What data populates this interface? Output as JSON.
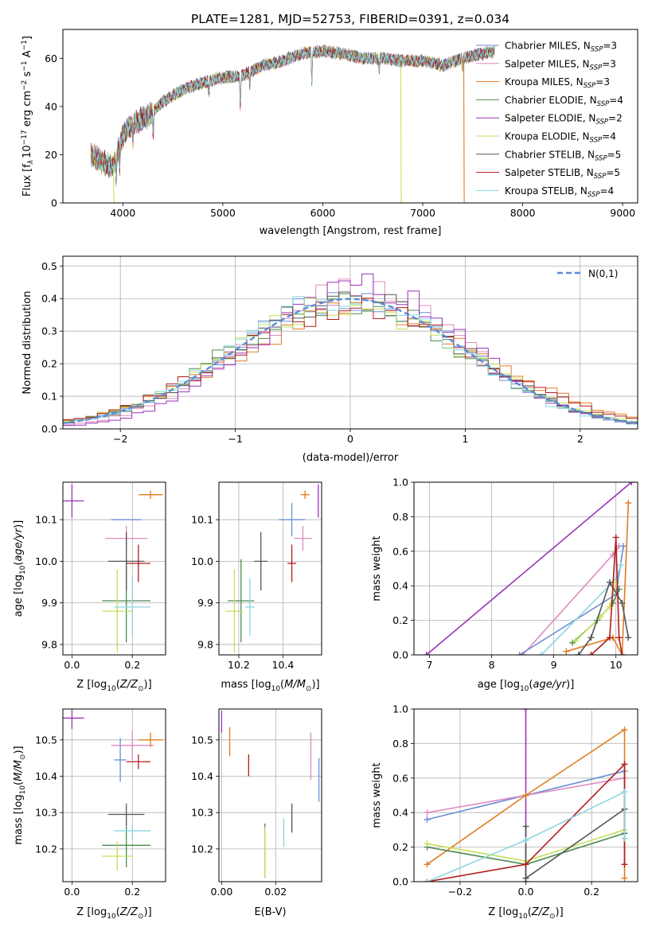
{
  "title": "PLATE=1281, MJD=52753, FIBERID=0391, z=0.034",
  "series": [
    {
      "name": "Chabrier MILES, N$_{SSP}$=3",
      "name_main": "Chabrier MILES, N",
      "name_sub": "SSP",
      "name_tail": "=3",
      "color": "#6a8ed6"
    },
    {
      "name": "Salpeter MILES, N$_{SSP}$=3",
      "name_main": "Salpeter MILES, N",
      "name_sub": "SSP",
      "name_tail": "=3",
      "color": "#e08abf"
    },
    {
      "name": "Kroupa MILES, N$_{SSP}$=3",
      "name_main": "Kroupa MILES, N",
      "name_sub": "SSP",
      "name_tail": "=3",
      "color": "#e07c22"
    },
    {
      "name": "Chabrier ELODIE, N$_{SSP}$=4",
      "name_main": "Chabrier ELODIE, N",
      "name_sub": "SSP",
      "name_tail": "=4",
      "color": "#4d8b4f"
    },
    {
      "name": "Salpeter ELODIE, N$_{SSP}$=2",
      "name_main": "Salpeter ELODIE, N",
      "name_sub": "SSP",
      "name_tail": "=2",
      "color": "#9a32b8"
    },
    {
      "name": "Kroupa ELODIE, N$_{SSP}$=4",
      "name_main": "Kroupa ELODIE, N",
      "name_sub": "SSP",
      "name_tail": "=4",
      "color": "#c6e05c"
    },
    {
      "name": "Chabrier STELIB, N$_{SSP}$=5",
      "name_main": "Chabrier STELIB, N",
      "name_sub": "SSP",
      "name_tail": "=5",
      "color": "#555555"
    },
    {
      "name": "Salpeter STELIB, N$_{SSP}$=5",
      "name_main": "Salpeter STELIB, N",
      "name_sub": "SSP",
      "name_tail": "=5",
      "color": "#b01c1c"
    },
    {
      "name": "Kroupa STELIB, N$_{SSP}$=4",
      "name_main": "Kroupa STELIB, N",
      "name_sub": "SSP",
      "name_tail": "=4",
      "color": "#8ad6e0"
    }
  ],
  "chart_data": [
    {
      "id": "spectrum",
      "type": "line",
      "title": "PLATE=1281, MJD=52753, FIBERID=0391, z=0.034",
      "xlabel": "wavelength [Angstrom, rest frame]",
      "ylabel": "Flux [f_λ 10^-17 erg cm^-2 s^-1 A^-1]",
      "ylabel_parts": {
        "a": "Flux [f",
        "a_sub": "λ",
        "b": "10",
        "b_sup": "−17",
        "c": " erg cm",
        "c_sup": "−2",
        "d": " s",
        "d_sup": "−1",
        "e": " A",
        "e_sup": "−1",
        "f": "]"
      },
      "xlim": [
        3400,
        9150
      ],
      "ylim": [
        0,
        72
      ],
      "xticks": [
        4000,
        5000,
        6000,
        7000,
        8000,
        9000
      ],
      "yticks": [
        0,
        20,
        40,
        60
      ],
      "grid": false,
      "legend_placement": "right",
      "x_range_data": [
        3680,
        7720
      ],
      "continuum_knots": [
        [
          3680,
          20
        ],
        [
          3800,
          17
        ],
        [
          3900,
          15
        ],
        [
          3950,
          22
        ],
        [
          4000,
          28
        ],
        [
          4100,
          33
        ],
        [
          4250,
          36
        ],
        [
          4400,
          42
        ],
        [
          4600,
          47
        ],
        [
          4800,
          50
        ],
        [
          5000,
          52
        ],
        [
          5200,
          53
        ],
        [
          5400,
          57
        ],
        [
          5600,
          59
        ],
        [
          5800,
          62
        ],
        [
          6000,
          63
        ],
        [
          6200,
          62
        ],
        [
          6400,
          60
        ],
        [
          6600,
          60
        ],
        [
          6800,
          59
        ],
        [
          7000,
          59
        ],
        [
          7200,
          57
        ],
        [
          7400,
          60
        ],
        [
          7600,
          62
        ],
        [
          7720,
          63
        ]
      ],
      "absorption_lines": [
        [
          3933,
          8
        ],
        [
          3968,
          9
        ],
        [
          4101,
          6
        ],
        [
          4304,
          10
        ],
        [
          4861,
          5
        ],
        [
          5175,
          13
        ],
        [
          5270,
          5
        ],
        [
          5890,
          12
        ],
        [
          6563,
          5
        ],
        [
          7400,
          4
        ]
      ],
      "dropouts": [
        {
          "series": 5,
          "x": 3905,
          "y_from": 15,
          "y_to": 0
        },
        {
          "series": 5,
          "x": 6780,
          "y_from": 57,
          "y_to": 0
        },
        {
          "series": 2,
          "x": 7410,
          "y_from": 60,
          "y_to": 0
        }
      ]
    },
    {
      "id": "residual_hist",
      "type": "line",
      "xlabel": "(data-model)/error",
      "ylabel": "Normed distribution",
      "xlim": [
        -2.5,
        2.5
      ],
      "ylim": [
        0,
        0.53
      ],
      "xticks": [
        -2,
        -1,
        0,
        1,
        2
      ],
      "yticks": [
        0.0,
        0.1,
        0.2,
        0.3,
        0.4,
        0.5
      ],
      "grid": true,
      "bin_width": 0.1,
      "legend_placement": "top-right",
      "reference_label": "N(0,1)",
      "reference_color": "#5b8bd8",
      "base_sigma": 1.05,
      "series_sigma": [
        1.0,
        0.95,
        1.1,
        1.02,
        0.92,
        1.05,
        1.0,
        1.08,
        0.98
      ],
      "series_mu": [
        0.0,
        0.05,
        0.08,
        -0.05,
        0.1,
        -0.02,
        0.0,
        0.03,
        -0.04
      ]
    },
    {
      "id": "age_vs_Z",
      "type": "scatter",
      "xlabel": "Z [log10(Z/Z_sun)]",
      "ylabel": "age [log10(age/yr)]",
      "xlim": [
        -0.03,
        0.31
      ],
      "ylim": [
        9.775,
        10.19
      ],
      "xticks": [
        0.0,
        0.2
      ],
      "yticks": [
        9.8,
        9.9,
        10.0,
        10.1
      ],
      "grid": true,
      "points": [
        {
          "s": 0,
          "x": 0.18,
          "y": 10.1,
          "xerr": 0.05,
          "yerr": 0.0
        },
        {
          "s": 1,
          "x": 0.18,
          "y": 10.055,
          "xerr": 0.07,
          "yerr": 0.03
        },
        {
          "s": 2,
          "x": 0.26,
          "y": 10.16,
          "xerr": 0.04,
          "yerr": 0.01
        },
        {
          "s": 3,
          "x": 0.18,
          "y": 9.905,
          "xerr": 0.08,
          "yerr": 0.1
        },
        {
          "s": 4,
          "x": 0.0,
          "y": 10.145,
          "xerr": 0.04,
          "yerr": 0.04
        },
        {
          "s": 5,
          "x": 0.15,
          "y": 9.88,
          "xerr": 0.05,
          "yerr": 0.1
        },
        {
          "s": 6,
          "x": 0.18,
          "y": 10.0,
          "xerr": 0.06,
          "yerr": 0.07
        },
        {
          "s": 7,
          "x": 0.22,
          "y": 9.995,
          "xerr": 0.04,
          "yerr": 0.045
        },
        {
          "s": 8,
          "x": 0.2,
          "y": 9.89,
          "xerr": 0.06,
          "yerr": 0.07
        }
      ]
    },
    {
      "id": "age_vs_mass",
      "type": "scatter",
      "xlabel": "mass [log10(M/M_sun)]",
      "ylabel": "",
      "xlim": [
        10.11,
        10.575
      ],
      "ylim": [
        9.775,
        10.19
      ],
      "xticks": [
        10.2,
        10.4
      ],
      "yticks": [
        9.8,
        9.9,
        10.0,
        10.1
      ],
      "grid": true,
      "points": [
        {
          "s": 0,
          "x": 10.44,
          "y": 10.1,
          "xerr": 0.06,
          "yerr": 0.04
        },
        {
          "s": 1,
          "x": 10.49,
          "y": 10.055,
          "xerr": 0.04,
          "yerr": 0.03
        },
        {
          "s": 2,
          "x": 10.5,
          "y": 10.16,
          "xerr": 0.02,
          "yerr": 0.01
        },
        {
          "s": 3,
          "x": 10.21,
          "y": 9.905,
          "xerr": 0.06,
          "yerr": 0.1
        },
        {
          "s": 4,
          "x": 10.56,
          "y": 10.145,
          "xerr": 0.0,
          "yerr": 0.04
        },
        {
          "s": 5,
          "x": 10.18,
          "y": 9.88,
          "xerr": 0.04,
          "yerr": 0.1
        },
        {
          "s": 6,
          "x": 10.3,
          "y": 10.0,
          "xerr": 0.03,
          "yerr": 0.07
        },
        {
          "s": 7,
          "x": 10.44,
          "y": 9.995,
          "xerr": 0.02,
          "yerr": 0.045
        },
        {
          "s": 8,
          "x": 10.25,
          "y": 9.89,
          "xerr": 0.02,
          "yerr": 0.07
        }
      ]
    },
    {
      "id": "massweight_vs_age",
      "type": "line",
      "xlabel": "age [log10(age/yr)]",
      "ylabel": "mass weight",
      "xlim": [
        6.75,
        10.35
      ],
      "ylim": [
        0,
        1
      ],
      "xticks": [
        7,
        8,
        9,
        10
      ],
      "yticks": [
        0.0,
        0.2,
        0.4,
        0.6,
        0.8,
        1.0
      ],
      "grid": true,
      "lines": [
        {
          "s": 4,
          "pts": [
            [
              6.95,
              0.0
            ],
            [
              10.25,
              1.0
            ]
          ]
        },
        {
          "s": 1,
          "pts": [
            [
              8.5,
              0.0
            ],
            [
              9.95,
              0.58
            ],
            [
              10.05,
              0.63
            ]
          ]
        },
        {
          "s": 0,
          "pts": [
            [
              8.45,
              0.0
            ],
            [
              10.0,
              0.35
            ],
            [
              10.12,
              0.63
            ]
          ]
        },
        {
          "s": 8,
          "pts": [
            [
              8.8,
              0.0
            ],
            [
              10.0,
              0.44
            ],
            [
              10.08,
              0.52
            ]
          ]
        },
        {
          "s": 2,
          "pts": [
            [
              9.2,
              0.02
            ],
            [
              9.95,
              0.1
            ],
            [
              10.1,
              0.0
            ],
            [
              10.2,
              0.88
            ]
          ]
        },
        {
          "s": 3,
          "pts": [
            [
              9.3,
              0.07
            ],
            [
              9.7,
              0.2
            ],
            [
              9.95,
              0.3
            ],
            [
              10.05,
              0.38
            ]
          ]
        },
        {
          "s": 5,
          "pts": [
            [
              9.35,
              0.08
            ],
            [
              9.75,
              0.22
            ],
            [
              9.9,
              0.28
            ],
            [
              10.0,
              0.42
            ]
          ]
        },
        {
          "s": 6,
          "pts": [
            [
              9.4,
              0.0
            ],
            [
              9.6,
              0.1
            ],
            [
              9.9,
              0.42
            ],
            [
              10.1,
              0.3
            ],
            [
              10.2,
              0.1
            ]
          ]
        },
        {
          "s": 7,
          "pts": [
            [
              9.6,
              0.0
            ],
            [
              9.9,
              0.1
            ],
            [
              10.0,
              0.68
            ],
            [
              10.05,
              0.1
            ],
            [
              10.1,
              0.0
            ]
          ]
        }
      ]
    },
    {
      "id": "mass_vs_Z",
      "type": "scatter",
      "xlabel": "Z [log10(Z/Z_sun)]",
      "ylabel": "mass [log10(M/M_sun)]",
      "xlim": [
        -0.03,
        0.31
      ],
      "ylim": [
        10.11,
        10.585
      ],
      "xticks": [
        0.0,
        0.2
      ],
      "yticks": [
        10.2,
        10.3,
        10.4,
        10.5
      ],
      "grid": true,
      "points": [
        {
          "s": 0,
          "x": 0.16,
          "y": 10.445,
          "xerr": 0.02,
          "yerr": 0.06
        },
        {
          "s": 1,
          "x": 0.2,
          "y": 10.485,
          "xerr": 0.07,
          "yerr": 0.04
        },
        {
          "s": 2,
          "x": 0.26,
          "y": 10.5,
          "xerr": 0.04,
          "yerr": 0.02
        },
        {
          "s": 3,
          "x": 0.18,
          "y": 10.21,
          "xerr": 0.08,
          "yerr": 0.06
        },
        {
          "s": 4,
          "x": 0.0,
          "y": 10.56,
          "xerr": 0.04,
          "yerr": 0.03
        },
        {
          "s": 5,
          "x": 0.15,
          "y": 10.18,
          "xerr": 0.05,
          "yerr": 0.04
        },
        {
          "s": 6,
          "x": 0.18,
          "y": 10.295,
          "xerr": 0.06,
          "yerr": 0.03
        },
        {
          "s": 7,
          "x": 0.22,
          "y": 10.44,
          "xerr": 0.04,
          "yerr": 0.02
        },
        {
          "s": 8,
          "x": 0.2,
          "y": 10.25,
          "xerr": 0.06,
          "yerr": 0.02
        }
      ]
    },
    {
      "id": "mass_vs_EBV",
      "type": "scatter",
      "xlabel": "E(B-V)",
      "ylabel": "",
      "xlim": [
        -0.001,
        0.037
      ],
      "ylim": [
        10.11,
        10.585
      ],
      "xticks": [
        0.0,
        0.02
      ],
      "yticks": [
        10.2,
        10.3,
        10.4,
        10.5
      ],
      "grid": true,
      "points": [
        {
          "s": 0,
          "x": 0.036,
          "y": 10.39,
          "xerr": 0.0,
          "yerr": 0.06
        },
        {
          "s": 1,
          "x": 0.033,
          "y": 10.455,
          "xerr": 0.0,
          "yerr": 0.065
        },
        {
          "s": 2,
          "x": 0.003,
          "y": 10.495,
          "xerr": 0.0,
          "yerr": 0.04
        },
        {
          "s": 3,
          "x": 0.016,
          "y": 10.195,
          "xerr": 0.0,
          "yerr": 0.075
        },
        {
          "s": 4,
          "x": 0.0,
          "y": 10.55,
          "xerr": 0.0,
          "yerr": 0.03
        },
        {
          "s": 5,
          "x": 0.016,
          "y": 10.19,
          "xerr": 0.0,
          "yerr": 0.07
        },
        {
          "s": 6,
          "x": 0.026,
          "y": 10.285,
          "xerr": 0.0,
          "yerr": 0.04
        },
        {
          "s": 7,
          "x": 0.01,
          "y": 10.43,
          "xerr": 0.0,
          "yerr": 0.03
        },
        {
          "s": 8,
          "x": 0.023,
          "y": 10.245,
          "xerr": 0.0,
          "yerr": 0.04
        }
      ]
    },
    {
      "id": "massweight_vs_Z",
      "type": "line",
      "xlabel": "Z [log10(Z/Z_sun)]",
      "ylabel": "mass weight",
      "xlim": [
        -0.34,
        0.34
      ],
      "ylim": [
        0,
        1
      ],
      "xticks": [
        -0.2,
        0.0,
        0.2
      ],
      "yticks": [
        0.0,
        0.2,
        0.4,
        0.6,
        0.8,
        1.0
      ],
      "grid": true,
      "lines": [
        {
          "s": 4,
          "pts": [
            [
              0.0,
              0.0
            ],
            [
              0.0,
              1.0
            ]
          ]
        },
        {
          "s": 0,
          "pts": [
            [
              -0.3,
              0.36
            ],
            [
              0.0,
              0.5
            ],
            [
              0.3,
              0.64
            ]
          ]
        },
        {
          "s": 1,
          "pts": [
            [
              -0.3,
              0.4
            ],
            [
              0.0,
              0.5
            ],
            [
              0.3,
              0.6
            ]
          ]
        },
        {
          "s": 2,
          "pts": [
            [
              -0.3,
              0.1
            ],
            [
              0.0,
              0.5
            ],
            [
              0.3,
              0.88
            ],
            [
              0.3,
              0.02
            ]
          ]
        },
        {
          "s": 3,
          "pts": [
            [
              -0.3,
              0.2
            ],
            [
              0.0,
              0.1
            ],
            [
              0.3,
              0.28
            ]
          ]
        },
        {
          "s": 5,
          "pts": [
            [
              -0.3,
              0.22
            ],
            [
              0.0,
              0.12
            ],
            [
              0.3,
              0.3
            ]
          ]
        },
        {
          "s": 6,
          "pts": [
            [
              0.0,
              0.32
            ],
            [
              0.0,
              0.02
            ],
            [
              0.3,
              0.42
            ],
            [
              0.3,
              0.25
            ]
          ]
        },
        {
          "s": 7,
          "pts": [
            [
              -0.3,
              0.0
            ],
            [
              0.0,
              0.1
            ],
            [
              0.3,
              0.68
            ],
            [
              0.3,
              0.1
            ]
          ]
        },
        {
          "s": 8,
          "pts": [
            [
              -0.3,
              0.0
            ],
            [
              0.0,
              0.24
            ],
            [
              0.3,
              0.52
            ],
            [
              0.3,
              0.25
            ]
          ]
        }
      ]
    }
  ]
}
